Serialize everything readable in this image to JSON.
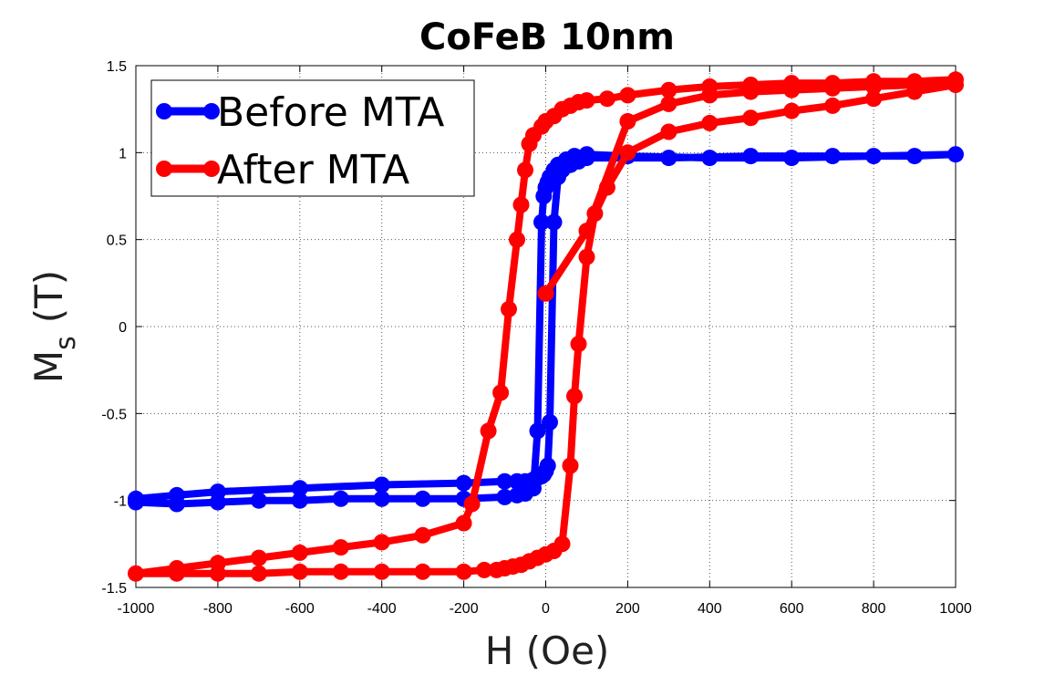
{
  "chart_data": {
    "type": "line",
    "title": "CoFeB 10nm",
    "xlabel": "H (Oe)",
    "ylabel_main": "M",
    "ylabel_sub": "s",
    "ylabel_unit": "(T)",
    "xlim": [
      -1000,
      1000
    ],
    "ylim": [
      -1.5,
      1.5
    ],
    "xticks": [
      -1000,
      -800,
      -600,
      -400,
      -200,
      0,
      200,
      400,
      600,
      800,
      1000
    ],
    "yticks": [
      -1.5,
      -1,
      -0.5,
      0,
      0.5,
      1,
      1.5
    ],
    "grid": true,
    "legend_position": "top-left",
    "series": [
      {
        "name": "Before MTA",
        "color": "#0000ff",
        "marker": "circle",
        "x": [
          -1000,
          -900,
          -800,
          -700,
          -600,
          -500,
          -400,
          -300,
          -200,
          -100,
          -70,
          -50,
          -30,
          -20,
          -10,
          -5,
          0,
          5,
          10,
          20,
          30,
          50,
          70,
          100,
          200,
          400,
          600,
          800,
          1000,
          900,
          700,
          500,
          300,
          100,
          80,
          60,
          40,
          30,
          20,
          10,
          5,
          0,
          -5,
          -10,
          -20,
          -30,
          -50,
          -70,
          -100,
          -200,
          -400,
          -600,
          -800,
          -900,
          -1000
        ],
        "y": [
          -1.01,
          -1.02,
          -1.01,
          -1.0,
          -1.0,
          -0.99,
          -0.99,
          -0.99,
          -0.99,
          -0.98,
          -0.97,
          -0.96,
          -0.93,
          -0.6,
          0.6,
          0.75,
          0.8,
          0.83,
          0.86,
          0.9,
          0.93,
          0.96,
          0.98,
          0.99,
          0.98,
          0.97,
          0.97,
          0.98,
          0.99,
          0.98,
          0.98,
          0.98,
          0.97,
          0.97,
          0.95,
          0.93,
          0.9,
          0.86,
          0.6,
          -0.55,
          -0.8,
          -0.83,
          -0.85,
          -0.86,
          -0.87,
          -0.88,
          -0.89,
          -0.89,
          -0.89,
          -0.9,
          -0.91,
          -0.93,
          -0.95,
          -0.97,
          -0.99
        ]
      },
      {
        "name": "After MTA",
        "color": "#ff0000",
        "marker": "circle",
        "x": [
          0,
          100,
          200,
          300,
          400,
          500,
          600,
          700,
          800,
          900,
          1000,
          900,
          800,
          700,
          600,
          500,
          400,
          300,
          200,
          150,
          120,
          100,
          80,
          70,
          60,
          40,
          20,
          0,
          -20,
          -40,
          -60,
          -80,
          -100,
          -120,
          -150,
          -200,
          -300,
          -400,
          -500,
          -600,
          -700,
          -800,
          -900,
          -1000,
          -900,
          -800,
          -700,
          -600,
          -500,
          -400,
          -300,
          -200,
          -180,
          -140,
          -110,
          -90,
          -70,
          -60,
          -50,
          -40,
          -30,
          -10,
          0,
          20,
          40,
          60,
          80,
          100,
          150,
          200,
          300,
          400,
          500,
          600,
          700,
          800,
          900,
          1000
        ],
        "y": [
          0.19,
          0.55,
          1.18,
          1.28,
          1.33,
          1.35,
          1.36,
          1.37,
          1.38,
          1.39,
          1.39,
          1.35,
          1.31,
          1.27,
          1.24,
          1.2,
          1.17,
          1.12,
          1.0,
          0.8,
          0.65,
          0.4,
          -0.1,
          -0.4,
          -0.8,
          -1.25,
          -1.29,
          -1.31,
          -1.33,
          -1.35,
          -1.37,
          -1.38,
          -1.39,
          -1.4,
          -1.4,
          -1.41,
          -1.41,
          -1.41,
          -1.41,
          -1.41,
          -1.42,
          -1.42,
          -1.42,
          -1.42,
          -1.39,
          -1.36,
          -1.33,
          -1.3,
          -1.27,
          -1.24,
          -1.2,
          -1.13,
          -1.02,
          -0.6,
          -0.38,
          0.1,
          0.5,
          0.7,
          0.9,
          1.05,
          1.1,
          1.15,
          1.18,
          1.21,
          1.25,
          1.27,
          1.29,
          1.3,
          1.31,
          1.33,
          1.36,
          1.38,
          1.39,
          1.4,
          1.4,
          1.41,
          1.41,
          1.42
        ]
      }
    ]
  }
}
